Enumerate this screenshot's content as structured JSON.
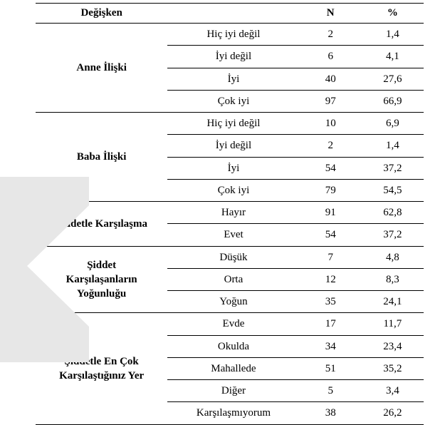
{
  "headers": {
    "variable": "Değişken",
    "level": "",
    "n": "N",
    "pct": "%"
  },
  "groups": [
    {
      "variable": "Anne İlişki",
      "rows": [
        {
          "level": "Hiç iyi değil",
          "n": "2",
          "pct": "1,4"
        },
        {
          "level": "İyi değil",
          "n": "6",
          "pct": "4,1"
        },
        {
          "level": "İyi",
          "n": "40",
          "pct": "27,6"
        },
        {
          "level": "Çok iyi",
          "n": "97",
          "pct": "66,9"
        }
      ]
    },
    {
      "variable": "Baba İlişki",
      "rows": [
        {
          "level": "Hiç iyi değil",
          "n": "10",
          "pct": "6,9"
        },
        {
          "level": "İyi değil",
          "n": "2",
          "pct": "1,4"
        },
        {
          "level": "İyi",
          "n": "54",
          "pct": "37,2"
        },
        {
          "level": "Çok iyi",
          "n": "79",
          "pct": "54,5"
        }
      ]
    },
    {
      "variable": "Şiddetle Karşılaşma",
      "rows": [
        {
          "level": "Hayır",
          "n": "91",
          "pct": "62,8"
        },
        {
          "level": "Evet",
          "n": "54",
          "pct": "37,2"
        }
      ]
    },
    {
      "variable": "Şiddet Karşılaşanların Yoğunluğu",
      "variable_lines": [
        "Şiddet",
        "Karşılaşanların",
        "Yoğunluğu"
      ],
      "rows": [
        {
          "level": "Düşük",
          "n": "7",
          "pct": "4,8"
        },
        {
          "level": "Orta",
          "n": "12",
          "pct": "8,3"
        },
        {
          "level": "Yoğun",
          "n": "35",
          "pct": "24,1"
        }
      ]
    },
    {
      "variable": "Şiddetle En Çok Karşılaştığınız Yer",
      "variable_lines": [
        "Şiddetle En Çok",
        "Karşılaştığınız Yer"
      ],
      "rows": [
        {
          "level": "Evde",
          "n": "17",
          "pct": "11,7"
        },
        {
          "level": "Okulda",
          "n": "34",
          "pct": "23,4"
        },
        {
          "level": "Mahallede",
          "n": "51",
          "pct": "35,2"
        },
        {
          "level": "Diğer",
          "n": "5",
          "pct": "3,4"
        },
        {
          "level": "Karşılaşmıyorum",
          "n": "38",
          "pct": "26,2"
        }
      ]
    }
  ],
  "style": {
    "font_family": "Times New Roman",
    "header_fontsize_pt": 11,
    "body_fontsize_pt": 11,
    "text_color": "#000000",
    "background_color": "#ffffff",
    "rule_color": "#000000",
    "overlay_color": "#e7e7e7"
  }
}
